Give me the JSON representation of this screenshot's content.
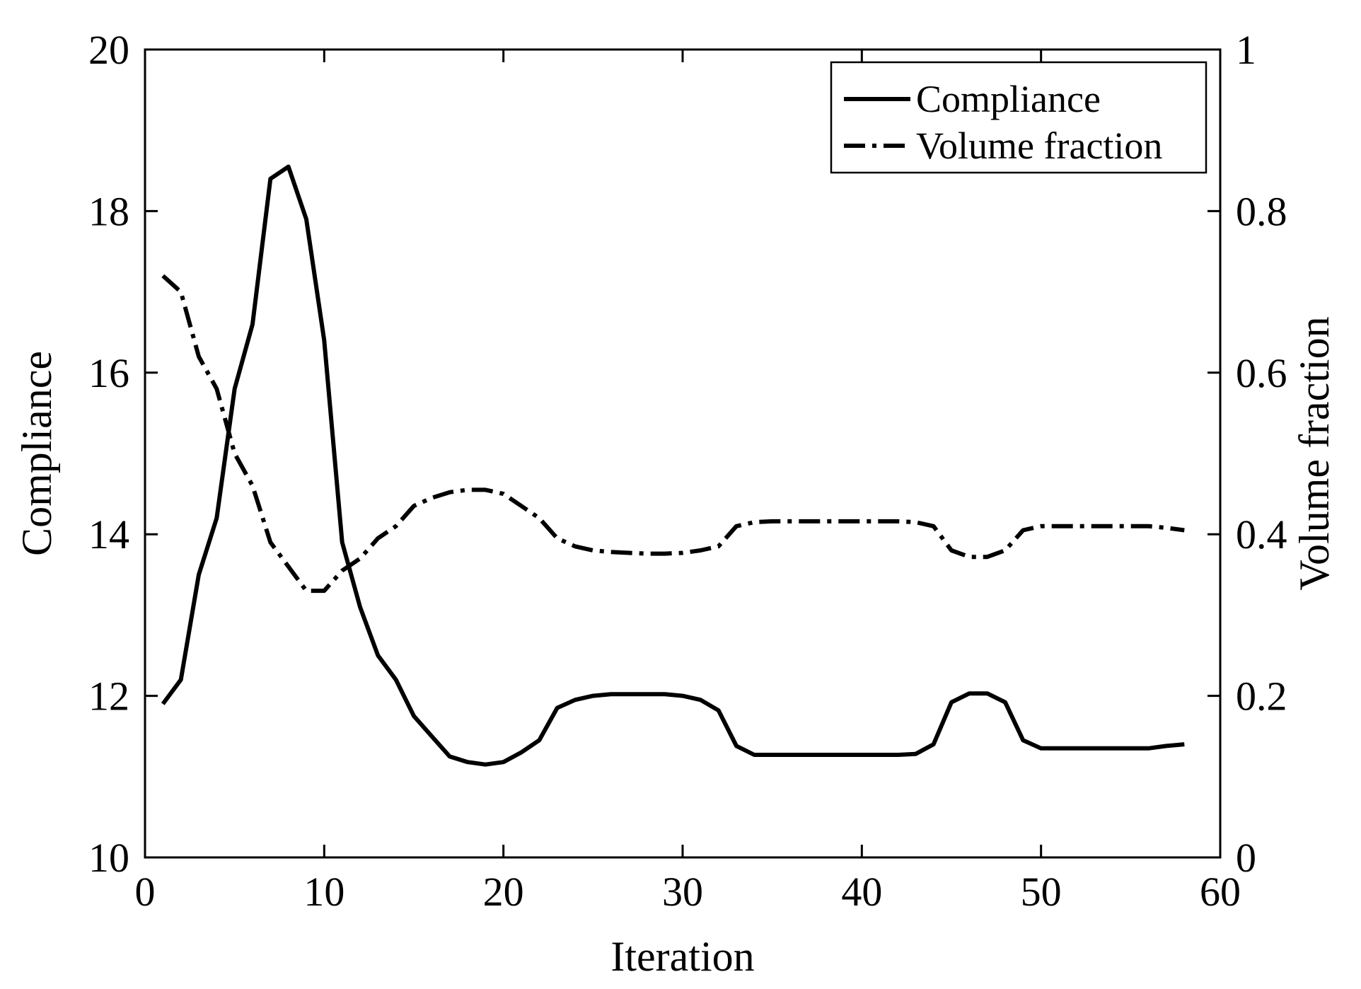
{
  "chart_data": {
    "type": "line",
    "title": "",
    "xlabel": "Iteration",
    "ylabel_left": "Compliance",
    "ylabel_right": "Volume fraction",
    "xlim": [
      0,
      60
    ],
    "ylim_left": [
      10,
      20
    ],
    "ylim_right": [
      0,
      1
    ],
    "xticks": [
      "0",
      "10",
      "20",
      "30",
      "40",
      "50",
      "60"
    ],
    "yticks_left": [
      "10",
      "12",
      "14",
      "16",
      "18",
      "20"
    ],
    "yticks_right": [
      "0",
      "0.2",
      "0.4",
      "0.6",
      "0.8",
      "1"
    ],
    "grid": false,
    "legend_position": "top-right",
    "series": [
      {
        "name": "Compliance",
        "axis": "left",
        "style": "solid",
        "color": "#000000",
        "x": [
          1,
          2,
          3,
          4,
          5,
          6,
          7,
          8,
          9,
          10,
          11,
          12,
          13,
          14,
          15,
          16,
          17,
          18,
          19,
          20,
          21,
          22,
          23,
          24,
          25,
          26,
          27,
          28,
          29,
          30,
          31,
          32,
          33,
          34,
          35,
          36,
          37,
          38,
          39,
          40,
          41,
          42,
          43,
          44,
          45,
          46,
          47,
          48,
          49,
          50,
          51,
          52,
          53,
          54,
          55,
          56,
          57,
          58
        ],
        "values": [
          11.9,
          12.2,
          13.5,
          14.2,
          15.8,
          16.6,
          18.4,
          18.55,
          17.9,
          16.4,
          13.9,
          13.1,
          12.5,
          12.2,
          11.75,
          11.5,
          11.25,
          11.18,
          11.15,
          11.18,
          11.3,
          11.45,
          11.85,
          11.95,
          12.0,
          12.02,
          12.02,
          12.02,
          12.02,
          12.0,
          11.95,
          11.82,
          11.38,
          11.27,
          11.27,
          11.27,
          11.27,
          11.27,
          11.27,
          11.27,
          11.27,
          11.27,
          11.28,
          11.4,
          11.92,
          12.03,
          12.03,
          11.92,
          11.45,
          11.35,
          11.35,
          11.35,
          11.35,
          11.35,
          11.35,
          11.35,
          11.38,
          11.4
        ]
      },
      {
        "name": "Volume fraction",
        "axis": "right",
        "style": "dash-dot",
        "color": "#000000",
        "x": [
          1,
          2,
          3,
          4,
          5,
          6,
          7,
          8,
          9,
          10,
          11,
          12,
          13,
          14,
          15,
          16,
          17,
          18,
          19,
          20,
          21,
          22,
          23,
          24,
          25,
          26,
          27,
          28,
          29,
          30,
          31,
          32,
          33,
          34,
          35,
          36,
          37,
          38,
          39,
          40,
          41,
          42,
          43,
          44,
          45,
          46,
          47,
          48,
          49,
          50,
          51,
          52,
          53,
          54,
          55,
          56,
          57,
          58
        ],
        "values": [
          0.72,
          0.7,
          0.62,
          0.58,
          0.5,
          0.46,
          0.39,
          0.36,
          0.33,
          0.33,
          0.355,
          0.37,
          0.395,
          0.41,
          0.435,
          0.445,
          0.452,
          0.455,
          0.455,
          0.45,
          0.435,
          0.42,
          0.395,
          0.385,
          0.38,
          0.378,
          0.377,
          0.376,
          0.376,
          0.377,
          0.38,
          0.385,
          0.41,
          0.415,
          0.416,
          0.416,
          0.416,
          0.416,
          0.416,
          0.416,
          0.416,
          0.416,
          0.415,
          0.41,
          0.38,
          0.372,
          0.372,
          0.38,
          0.405,
          0.41,
          0.41,
          0.41,
          0.41,
          0.41,
          0.41,
          0.41,
          0.408,
          0.405
        ]
      }
    ]
  }
}
